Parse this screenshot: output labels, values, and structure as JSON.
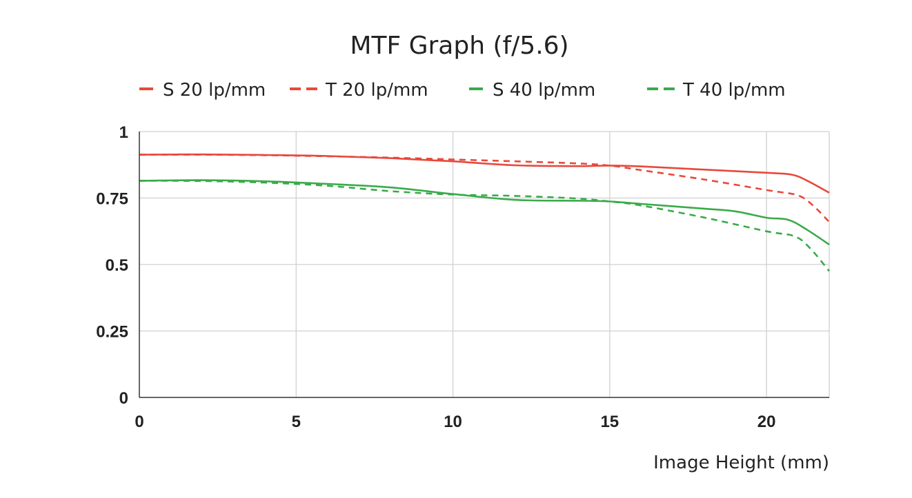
{
  "chart_data": {
    "type": "line",
    "title": "MTF Graph (f/5.6)",
    "xlabel": "Image Height (mm)",
    "ylabel": "",
    "xlim": [
      0,
      22
    ],
    "ylim": [
      0,
      1
    ],
    "xticks": [
      0,
      5,
      10,
      15,
      20
    ],
    "yticks": [
      0,
      0.25,
      0.5,
      0.75,
      1
    ],
    "ytick_labels": [
      "0",
      "0.25",
      "0.5",
      "0.75",
      "1"
    ],
    "grid": true,
    "legend_position": "top",
    "series": [
      {
        "name": "S 20 lp/mm",
        "color": "#e8483b",
        "dashed": false,
        "points": [
          [
            0,
            0.913
          ],
          [
            2,
            0.914
          ],
          [
            4,
            0.912
          ],
          [
            6,
            0.908
          ],
          [
            8,
            0.9
          ],
          [
            10,
            0.888
          ],
          [
            12,
            0.873
          ],
          [
            14,
            0.87
          ],
          [
            15,
            0.872
          ],
          [
            16,
            0.869
          ],
          [
            18,
            0.857
          ],
          [
            20,
            0.845
          ],
          [
            20.8,
            0.838
          ],
          [
            21.3,
            0.815
          ],
          [
            22,
            0.77
          ]
        ]
      },
      {
        "name": "T 20 lp/mm",
        "color": "#e8483b",
        "dashed": true,
        "points": [
          [
            0,
            0.913
          ],
          [
            2,
            0.913
          ],
          [
            4,
            0.911
          ],
          [
            6,
            0.907
          ],
          [
            8,
            0.902
          ],
          [
            10,
            0.895
          ],
          [
            12,
            0.888
          ],
          [
            14,
            0.88
          ],
          [
            15,
            0.872
          ],
          [
            16,
            0.855
          ],
          [
            18,
            0.82
          ],
          [
            20,
            0.78
          ],
          [
            21,
            0.76
          ],
          [
            21.5,
            0.72
          ],
          [
            22,
            0.66
          ]
        ]
      },
      {
        "name": "S 40 lp/mm",
        "color": "#3aaa4a",
        "dashed": false,
        "points": [
          [
            0,
            0.815
          ],
          [
            2,
            0.817
          ],
          [
            4,
            0.813
          ],
          [
            6,
            0.803
          ],
          [
            8,
            0.79
          ],
          [
            10,
            0.765
          ],
          [
            12,
            0.743
          ],
          [
            14,
            0.74
          ],
          [
            15,
            0.737
          ],
          [
            16,
            0.728
          ],
          [
            18,
            0.71
          ],
          [
            19,
            0.7
          ],
          [
            20,
            0.676
          ],
          [
            20.7,
            0.668
          ],
          [
            21.3,
            0.63
          ],
          [
            22,
            0.575
          ]
        ]
      },
      {
        "name": "T 40 lp/mm",
        "color": "#3aaa4a",
        "dashed": true,
        "points": [
          [
            0,
            0.815
          ],
          [
            2,
            0.814
          ],
          [
            4,
            0.808
          ],
          [
            6,
            0.796
          ],
          [
            8,
            0.776
          ],
          [
            10,
            0.763
          ],
          [
            12,
            0.758
          ],
          [
            14,
            0.748
          ],
          [
            15,
            0.737
          ],
          [
            16,
            0.722
          ],
          [
            18,
            0.677
          ],
          [
            20,
            0.625
          ],
          [
            20.9,
            0.606
          ],
          [
            21.4,
            0.56
          ],
          [
            22,
            0.475
          ]
        ]
      }
    ]
  }
}
